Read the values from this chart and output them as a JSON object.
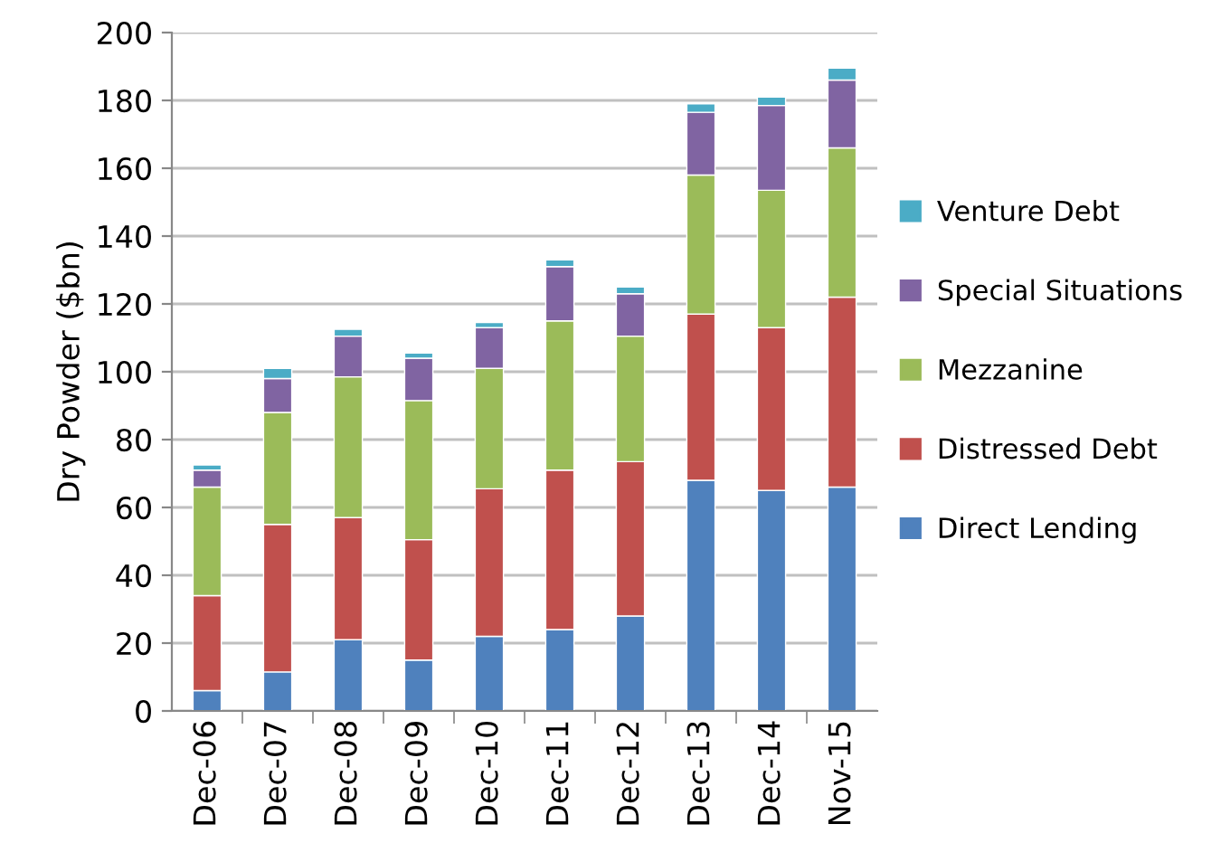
{
  "chart_data": {
    "type": "bar",
    "stacked": true,
    "ylabel": "Dry Powder ($bn)",
    "categories": [
      "Dec-06",
      "Dec-07",
      "Dec-08",
      "Dec-09",
      "Dec-10",
      "Dec-11",
      "Dec-12",
      "Dec-13",
      "Dec-14",
      "Nov-15"
    ],
    "series": [
      {
        "name": "Direct Lending",
        "color": "#4f81bd",
        "values": [
          6,
          11.5,
          21,
          15,
          22,
          24,
          28,
          68,
          65,
          66
        ]
      },
      {
        "name": "Distressed Debt",
        "color": "#c0504d",
        "values": [
          28,
          43.5,
          36,
          35.5,
          43.5,
          47,
          45.5,
          49,
          48,
          56
        ]
      },
      {
        "name": "Mezzanine",
        "color": "#9bbb59",
        "values": [
          32,
          33,
          41.5,
          41,
          35.5,
          44,
          37,
          41,
          40.5,
          44
        ]
      },
      {
        "name": "Special Situations",
        "color": "#8064a2",
        "values": [
          5,
          10,
          12,
          12.5,
          12,
          16,
          12.5,
          18.5,
          25,
          20
        ]
      },
      {
        "name": "Venture Debt",
        "color": "#4bacc6",
        "values": [
          1.5,
          3,
          2,
          1.5,
          1.5,
          2,
          2,
          2.5,
          2.5,
          3.5
        ]
      }
    ],
    "ylim": [
      0,
      200
    ],
    "yticks": [
      0,
      20,
      40,
      60,
      80,
      100,
      120,
      140,
      160,
      180,
      200
    ],
    "grid": "y",
    "legend": "right"
  }
}
